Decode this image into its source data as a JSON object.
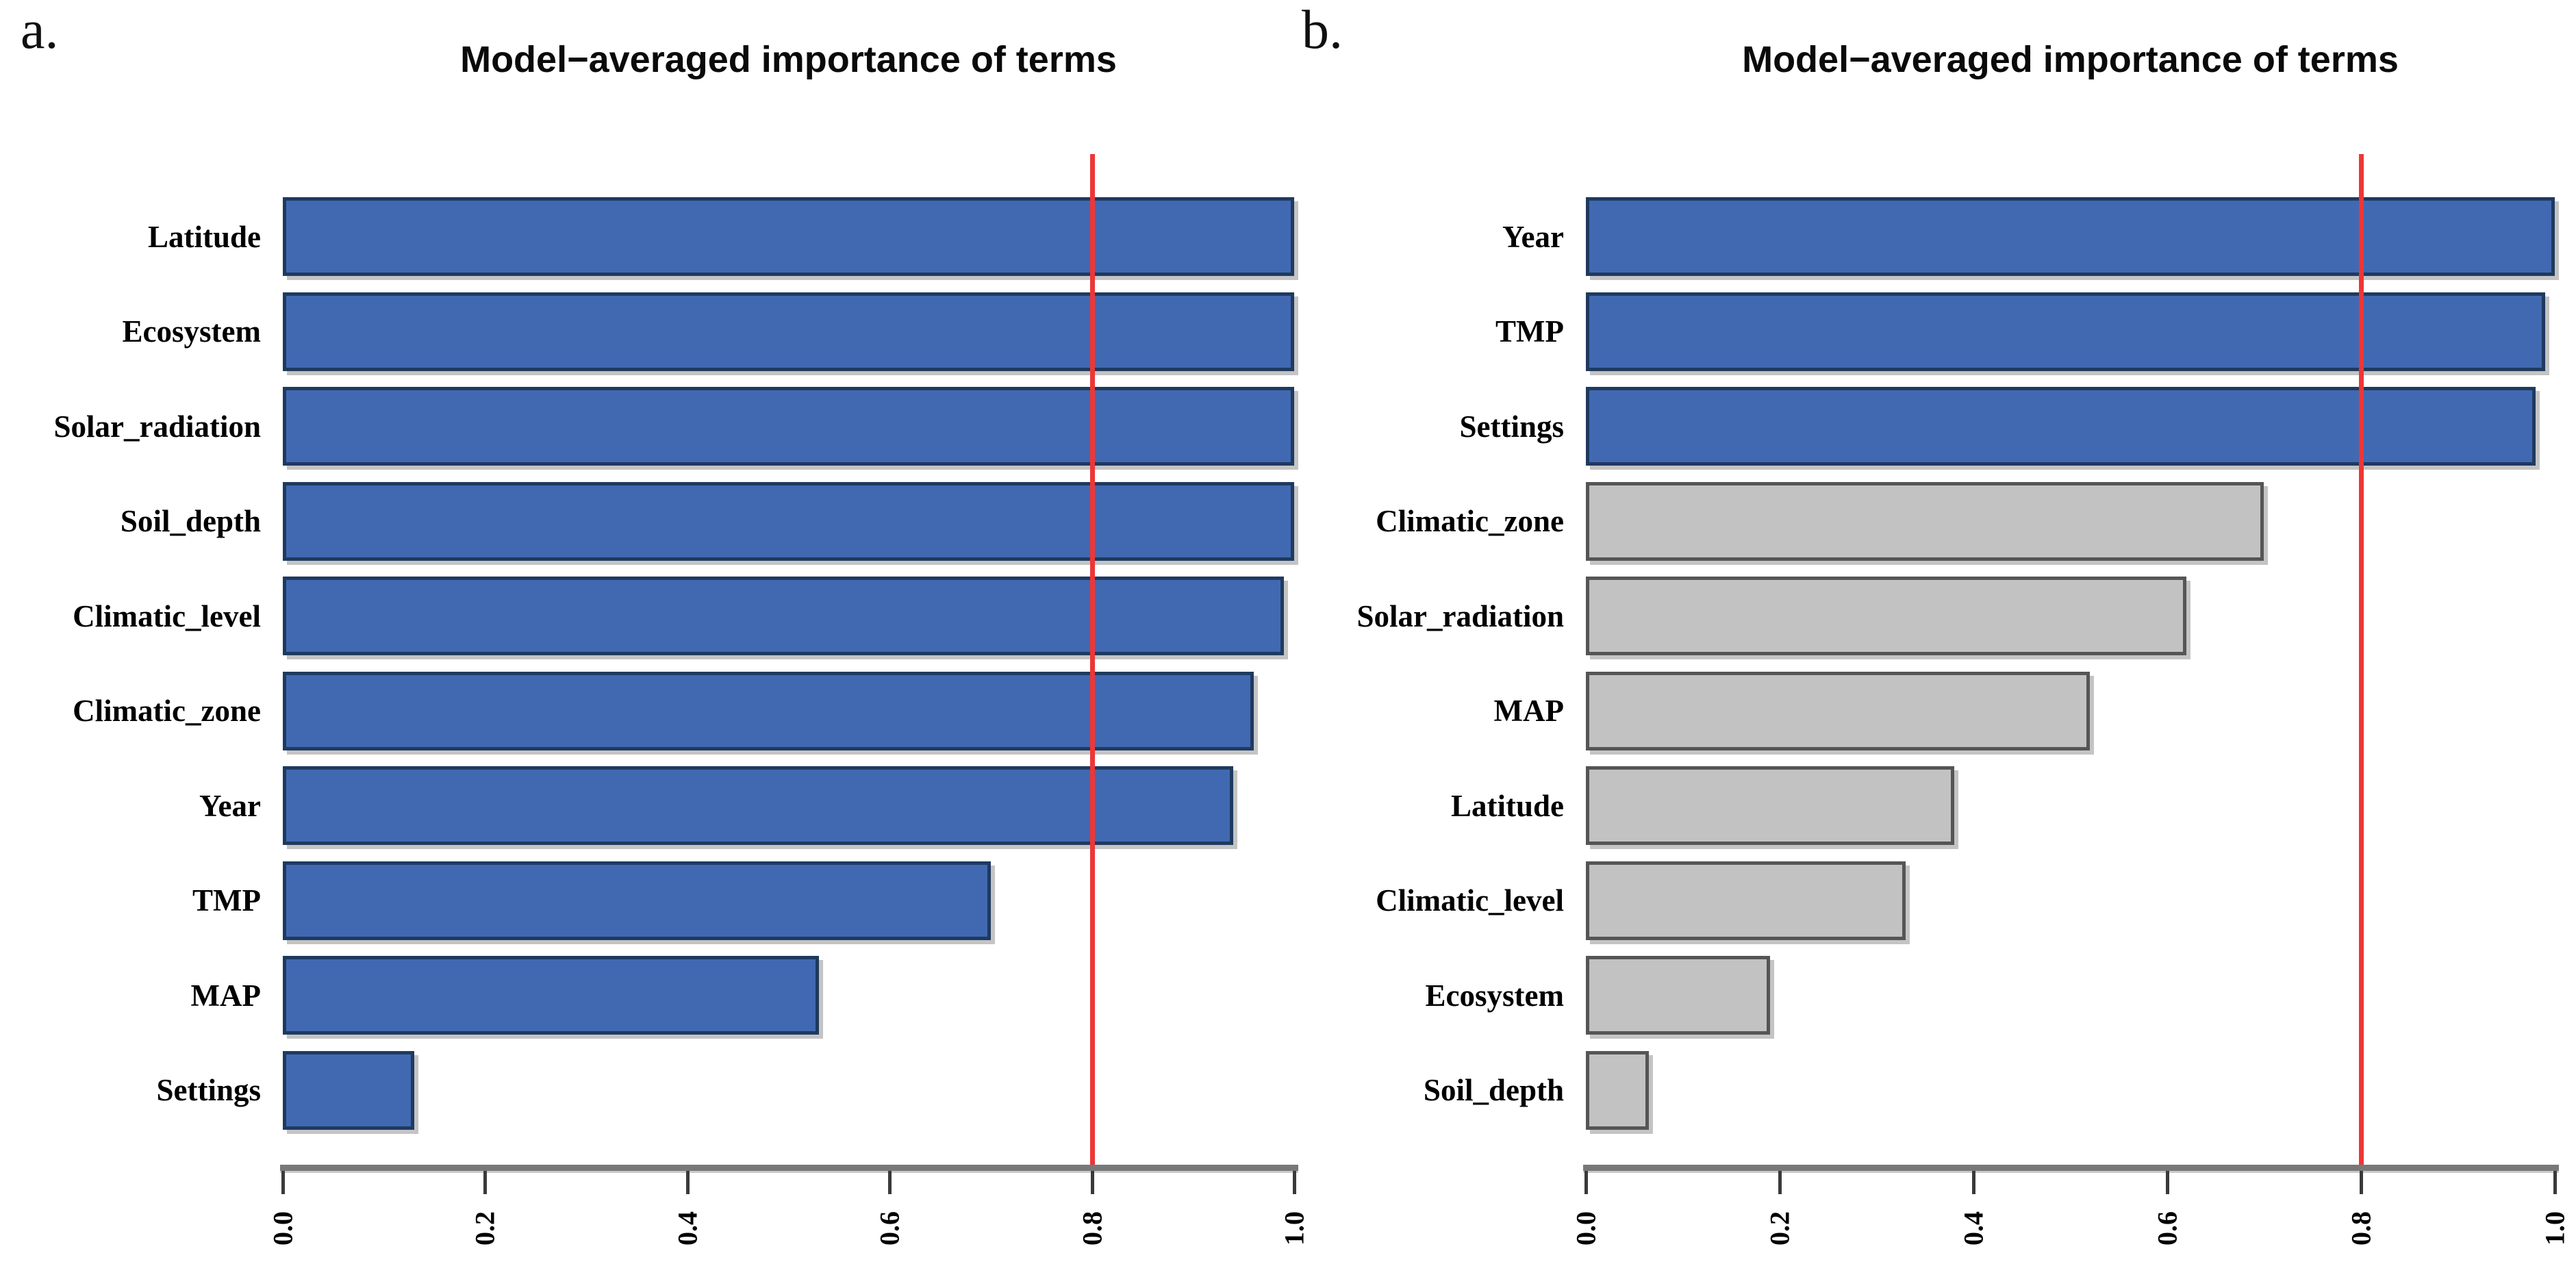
{
  "colors": {
    "blue": "#4169b2",
    "blue_border": "#1f3a5f",
    "gray": "#c2c2c2",
    "gray_border": "#555555",
    "threshold_line": "#ee3636",
    "axis": "#787878",
    "tick": "#3a3a3a",
    "text": "#000000"
  },
  "chart_data": [
    {
      "type": "bar",
      "orientation": "horizontal",
      "panel_label": "a.",
      "title": "Model−averaged importance of terms",
      "categories": [
        "Latitude",
        "Ecosystem",
        "Solar_radiation",
        "Soil_depth",
        "Climatic_level",
        "Climatic_zone",
        "Year",
        "TMP",
        "MAP",
        "Settings"
      ],
      "values": [
        1.0,
        1.0,
        1.0,
        1.0,
        0.99,
        0.96,
        0.94,
        0.7,
        0.53,
        0.13
      ],
      "bar_colors": [
        "blue",
        "blue",
        "blue",
        "blue",
        "blue",
        "blue",
        "blue",
        "blue",
        "blue",
        "blue"
      ],
      "xlim": [
        0.0,
        1.0
      ],
      "x_ticks": [
        "0.0",
        "0.2",
        "0.4",
        "0.6",
        "0.8",
        "1.0"
      ],
      "reference_line_x": 0.8,
      "grid": false,
      "legend": "none",
      "xlabel": "",
      "ylabel": ""
    },
    {
      "type": "bar",
      "orientation": "horizontal",
      "panel_label": "b.",
      "title": "Model−averaged importance of terms",
      "categories": [
        "Year",
        "TMP",
        "Settings",
        "Climatic_zone",
        "Solar_radiation",
        "MAP",
        "Latitude",
        "Climatic_level",
        "Ecosystem",
        "Soil_depth"
      ],
      "values": [
        1.0,
        0.99,
        0.98,
        0.7,
        0.62,
        0.52,
        0.38,
        0.33,
        0.19,
        0.065
      ],
      "bar_colors": [
        "blue",
        "blue",
        "blue",
        "gray",
        "gray",
        "gray",
        "gray",
        "gray",
        "gray",
        "gray"
      ],
      "xlim": [
        0.0,
        1.0
      ],
      "x_ticks": [
        "0.0",
        "0.2",
        "0.4",
        "0.6",
        "0.8",
        "1.0"
      ],
      "reference_line_x": 0.8,
      "grid": false,
      "legend": "none",
      "xlabel": "",
      "ylabel": ""
    }
  ]
}
